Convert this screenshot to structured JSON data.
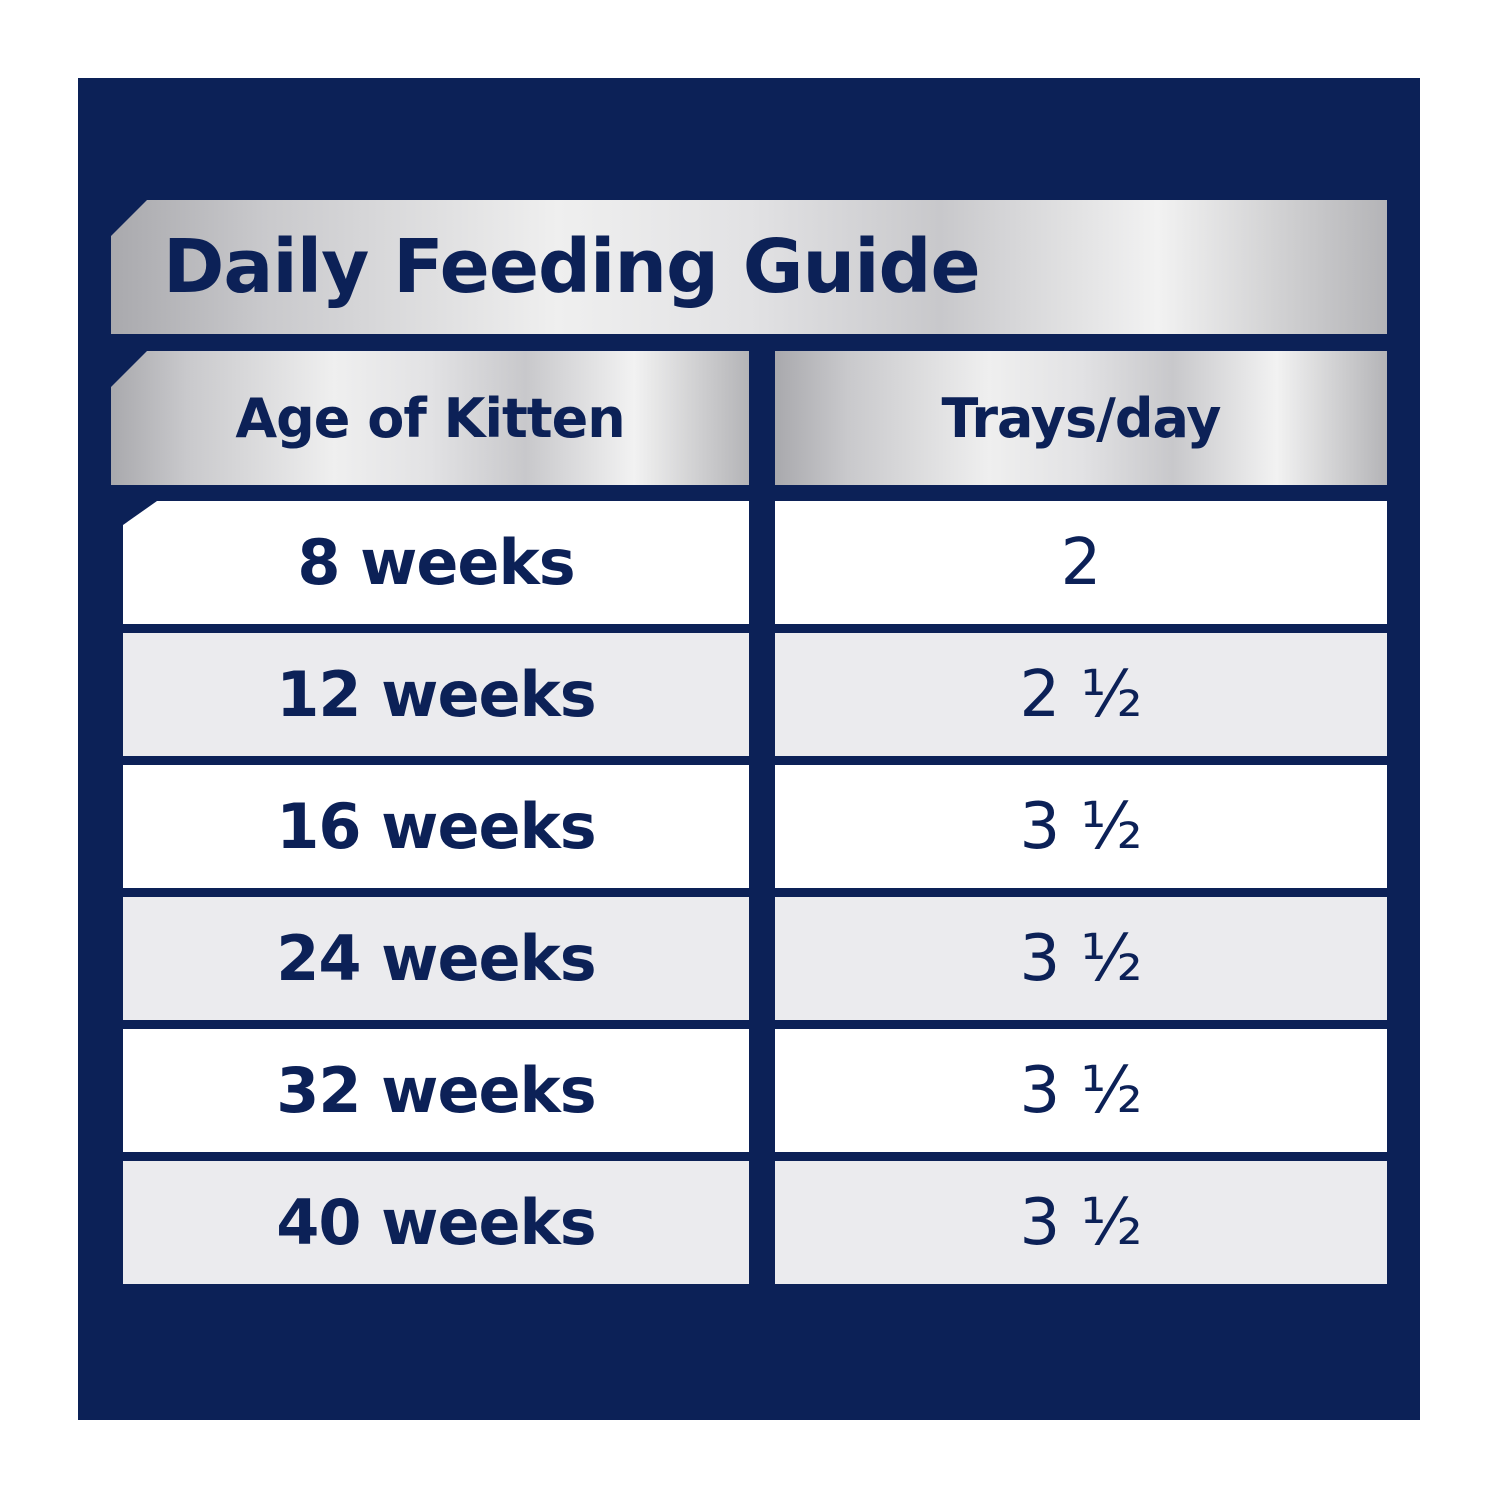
{
  "title": "Daily Feeding Guide",
  "columns": {
    "age": "Age of Kitten",
    "trays": "Trays/day"
  },
  "rows": [
    {
      "age": "8 weeks",
      "trays": "2"
    },
    {
      "age": "12 weeks",
      "trays": "2 ½"
    },
    {
      "age": "16 weeks",
      "trays": "3 ½"
    },
    {
      "age": "24 weeks",
      "trays": "3 ½"
    },
    {
      "age": "32 weeks",
      "trays": "3 ½"
    },
    {
      "age": "40 weeks",
      "trays": "3 ½"
    }
  ],
  "colors": {
    "navy": "#0c2157",
    "row_white": "#ffffff",
    "row_grey": "#ebebee"
  }
}
